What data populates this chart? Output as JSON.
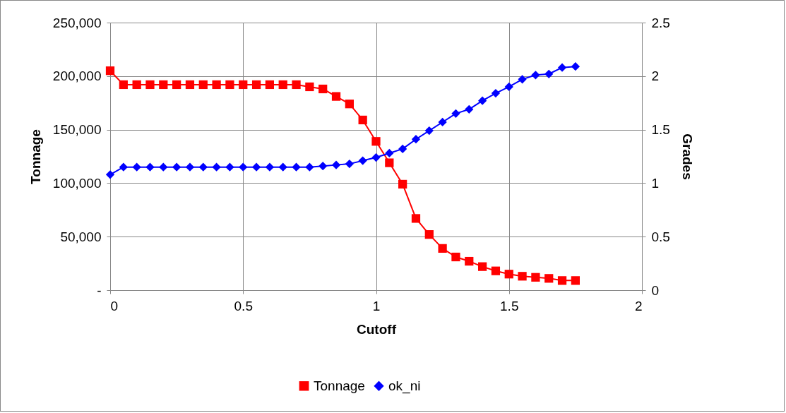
{
  "chart_data": {
    "type": "line",
    "xlabel": "Cutoff",
    "ylabel": "Tonnage",
    "y2label": "Grades",
    "x": [
      0,
      0.05,
      0.1,
      0.15,
      0.2,
      0.25,
      0.3,
      0.35,
      0.4,
      0.45,
      0.5,
      0.55,
      0.6,
      0.65,
      0.7,
      0.75,
      0.8,
      0.85,
      0.9,
      0.95,
      1,
      1.05,
      1.1,
      1.15,
      1.2,
      1.25,
      1.3,
      1.35,
      1.4,
      1.45,
      1.5,
      1.55,
      1.6,
      1.65,
      1.7,
      1.75
    ],
    "series": [
      {
        "name": "Tonnage",
        "color": "#ff0000",
        "marker": "square",
        "values": [
          205000,
          192000,
          192000,
          192000,
          192000,
          192000,
          192000,
          192000,
          192000,
          192000,
          192000,
          192000,
          192000,
          192000,
          192000,
          190000,
          188000,
          181000,
          174000,
          159000,
          139000,
          119000,
          99000,
          67000,
          52000,
          39000,
          31000,
          27000,
          22000,
          18000,
          15000,
          13000,
          12000,
          11000,
          9000,
          9000
        ]
      },
      {
        "name": "ok_ni",
        "color": "#0000ff",
        "marker": "diamond",
        "axis": "y2",
        "values": [
          1.08,
          1.15,
          1.15,
          1.15,
          1.15,
          1.15,
          1.15,
          1.15,
          1.15,
          1.15,
          1.15,
          1.15,
          1.15,
          1.15,
          1.15,
          1.15,
          1.16,
          1.17,
          1.18,
          1.21,
          1.24,
          1.28,
          1.32,
          1.41,
          1.49,
          1.57,
          1.65,
          1.69,
          1.77,
          1.84,
          1.9,
          1.97,
          2.01,
          2.02,
          2.08,
          2.09
        ]
      }
    ],
    "xlim": [
      0,
      2
    ],
    "xticks": [
      0,
      0.5,
      1,
      1.5,
      2
    ],
    "ylim": [
      0,
      250000
    ],
    "yticks": [
      {
        "value": 0,
        "label": "-"
      },
      {
        "value": 50000,
        "label": "50,000"
      },
      {
        "value": 100000,
        "label": "100,000"
      },
      {
        "value": 150000,
        "label": "150,000"
      },
      {
        "value": 200000,
        "label": "200,000"
      },
      {
        "value": 250000,
        "label": "250,000"
      }
    ],
    "y2lim": [
      0,
      2.5
    ],
    "y2ticks": [
      0,
      0.5,
      1,
      1.5,
      2,
      2.5
    ],
    "grid": true,
    "legend": "bottom"
  }
}
